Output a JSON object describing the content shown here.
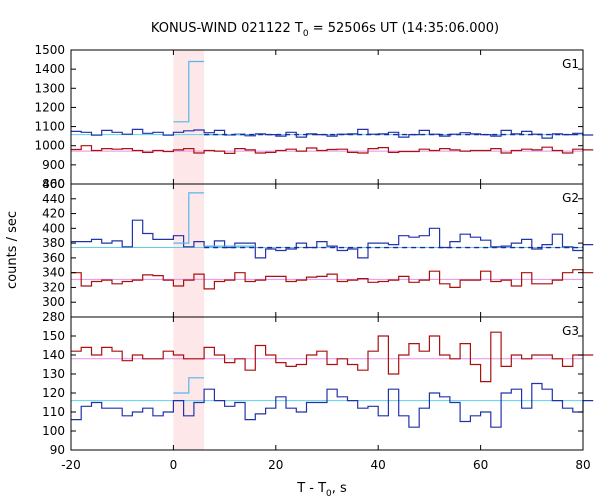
{
  "chart_data": [
    {
      "panel_label": "G1",
      "type": "line",
      "ylim": [
        800,
        1500
      ],
      "yticks": [
        "800",
        "900",
        "1000",
        "1100",
        "1200",
        "1300",
        "1400",
        "1500"
      ],
      "series": [
        {
          "color": "#2233aa",
          "background_level": 1058,
          "style": "step",
          "values": [
            1075,
            1070,
            1055,
            1080,
            1070,
            1060,
            1085,
            1065,
            1070,
            1055,
            1070,
            1078,
            1082,
            1068,
            1080,
            1056,
            1060,
            1052,
            1062,
            1058,
            1050,
            1070,
            1045,
            1062,
            1058,
            1050,
            1060,
            1062,
            1085,
            1060,
            1062,
            1070,
            1045,
            1058,
            1080,
            1060,
            1050,
            1060,
            1068,
            1062,
            1058,
            1050,
            1080,
            1062,
            1075,
            1060,
            1040,
            1062,
            1058,
            1065,
            1056
          ]
        },
        {
          "color": "#aa1111",
          "background_level": 972,
          "style": "step",
          "values": [
            980,
            1000,
            975,
            985,
            982,
            985,
            975,
            965,
            975,
            970,
            978,
            985,
            962,
            975,
            972,
            960,
            985,
            978,
            962,
            965,
            975,
            982,
            972,
            988,
            975,
            980,
            982,
            965,
            962,
            985,
            990,
            965,
            970,
            970,
            982,
            975,
            985,
            978,
            972,
            975,
            975,
            985,
            962,
            975,
            982,
            978,
            992,
            975,
            962,
            982,
            978
          ]
        },
        {
          "color": "#55b8e8",
          "style": "step",
          "x_start": 0,
          "values": [
            1125,
            1125,
            1125,
            1440,
            1440,
            1440
          ]
        },
        {
          "color": "#55b8e8",
          "style": "step",
          "x_start": 6,
          "values": [
            1058,
            1058,
            1058,
            1058,
            1058,
            1058,
            1058,
            1058,
            1058,
            1058
          ]
        }
      ]
    },
    {
      "panel_label": "G2",
      "type": "line",
      "ylim": [
        280,
        460
      ],
      "yticks": [
        "280",
        "300",
        "320",
        "340",
        "360",
        "380",
        "400",
        "420",
        "440",
        "460"
      ],
      "series": [
        {
          "color": "#2233aa",
          "background_level": 374,
          "style": "step",
          "values": [
            382,
            382,
            385,
            380,
            383,
            375,
            411,
            393,
            385,
            385,
            390,
            375,
            382,
            376,
            383,
            374,
            380,
            380,
            360,
            372,
            370,
            372,
            380,
            374,
            382,
            376,
            370,
            372,
            360,
            380,
            380,
            378,
            390,
            388,
            390,
            400,
            374,
            382,
            392,
            388,
            384,
            375,
            376,
            380,
            385,
            372,
            378,
            392,
            375,
            370,
            378
          ]
        },
        {
          "color": "#aa1111",
          "background_level": 331,
          "style": "step",
          "values": [
            340,
            322,
            328,
            330,
            325,
            328,
            330,
            337,
            336,
            330,
            322,
            330,
            338,
            318,
            328,
            330,
            340,
            328,
            330,
            335,
            335,
            328,
            330,
            334,
            335,
            338,
            328,
            330,
            332,
            327,
            328,
            330,
            335,
            327,
            330,
            342,
            325,
            320,
            330,
            330,
            342,
            328,
            330,
            322,
            340,
            325,
            325,
            330,
            340,
            344,
            340
          ]
        },
        {
          "color": "#55b8e8",
          "style": "step",
          "x_start": 0,
          "values": [
            380,
            380,
            380,
            448,
            448,
            448
          ]
        },
        {
          "color": "#55b8e8",
          "style": "step",
          "x_start": 6,
          "values": [
            376,
            376,
            376,
            376,
            376,
            376,
            376,
            376,
            376,
            376
          ]
        }
      ]
    },
    {
      "panel_label": "G3",
      "type": "line",
      "ylim": [
        90,
        160
      ],
      "yticks": [
        "90",
        "100",
        "110",
        "120",
        "130",
        "140",
        "150"
      ],
      "series": [
        {
          "color": "#2233aa",
          "background_level": 116,
          "style": "step",
          "values": [
            106,
            113,
            115,
            112,
            112,
            108,
            110,
            112,
            108,
            110,
            116,
            108,
            115,
            122,
            116,
            113,
            115,
            106,
            109,
            112,
            118,
            112,
            110,
            115,
            115,
            122,
            118,
            116,
            112,
            113,
            108,
            122,
            108,
            102,
            112,
            120,
            118,
            115,
            105,
            108,
            110,
            102,
            120,
            122,
            112,
            125,
            122,
            116,
            112,
            110,
            116
          ]
        },
        {
          "color": "#aa1111",
          "background_level": 138,
          "style": "step",
          "values": [
            142,
            144,
            140,
            144,
            142,
            137,
            140,
            138,
            138,
            142,
            140,
            138,
            138,
            144,
            140,
            136,
            138,
            132,
            145,
            140,
            136,
            134,
            135,
            140,
            142,
            135,
            138,
            135,
            132,
            142,
            150,
            130,
            140,
            146,
            142,
            150,
            140,
            138,
            146,
            135,
            126,
            152,
            134,
            140,
            138,
            140,
            140,
            138,
            134,
            140,
            140
          ]
        },
        {
          "color": "#55b8e8",
          "style": "step",
          "x_start": 0,
          "values": [
            120,
            120,
            120,
            128,
            128,
            128
          ]
        }
      ]
    }
  ],
  "figure": {
    "title_main": "KONUS-WIND 021122 T",
    "title_sub": "0",
    "title_rest": " = 52506s UT (14:35:06.000)",
    "ylabel": "counts / sec",
    "xlabel_main": "T - T",
    "xlabel_sub": "0",
    "xlabel_rest": ", s",
    "xlim": [
      -20,
      80
    ],
    "xticks": [
      "-20",
      "0",
      "20",
      "40",
      "60",
      "80"
    ],
    "highlight_interval": [
      0,
      6
    ],
    "bin_width": 2,
    "background_x_range": [
      -20,
      80
    ]
  },
  "colors": {
    "highlight": "#fde7e9",
    "bg_blue": "#5fd0e8",
    "bg_red": "#e890e8",
    "fit_dashed": "#1a2a9a"
  }
}
